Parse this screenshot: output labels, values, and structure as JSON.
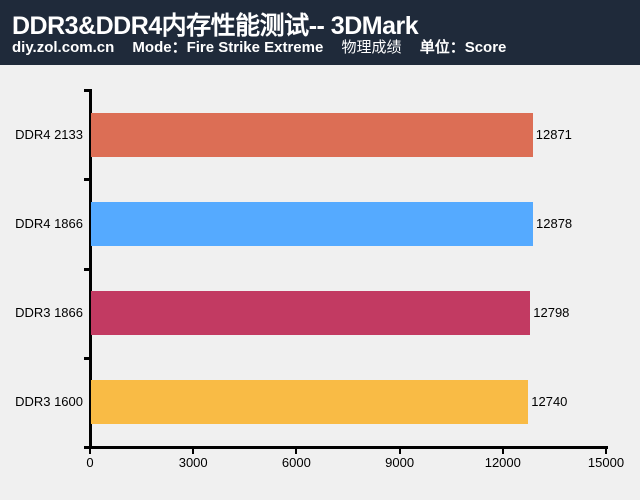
{
  "header": {
    "title": "DDR3&DDR4内存性能测试-- 3DMark",
    "site": "diy.zol.com.cn",
    "mode": "Mode：Fire Strike Extreme",
    "metric": "物理成绩",
    "unit": "单位：Score"
  },
  "colors": {
    "header_bg": "#1f2a3a",
    "background": "#f0f0f0",
    "bars": [
      "#dc6e55",
      "#55aaff",
      "#c23a62",
      "#f9bb45"
    ]
  },
  "chart_data": {
    "type": "bar",
    "orientation": "horizontal",
    "title": "DDR3&DDR4内存性能测试-- 3DMark",
    "subtitle": "diy.zol.com.cn Mode：Fire Strike Extreme 物理成绩 单位：Score",
    "categories": [
      "DDR4 2133",
      "DDR4 1866",
      "DDR3 1866",
      "DDR3 1600"
    ],
    "values": [
      12871,
      12878,
      12798,
      12740
    ],
    "value_labels": [
      "12871",
      "12878",
      "12798",
      "12740"
    ],
    "xlabel": "",
    "ylabel": "",
    "xlim": [
      0,
      15000
    ],
    "xticks": [
      0,
      3000,
      6000,
      9000,
      12000,
      15000
    ],
    "xtick_labels": [
      "0",
      "3000",
      "6000",
      "9000",
      "12000",
      "15000"
    ],
    "grid": false,
    "legend": null
  }
}
